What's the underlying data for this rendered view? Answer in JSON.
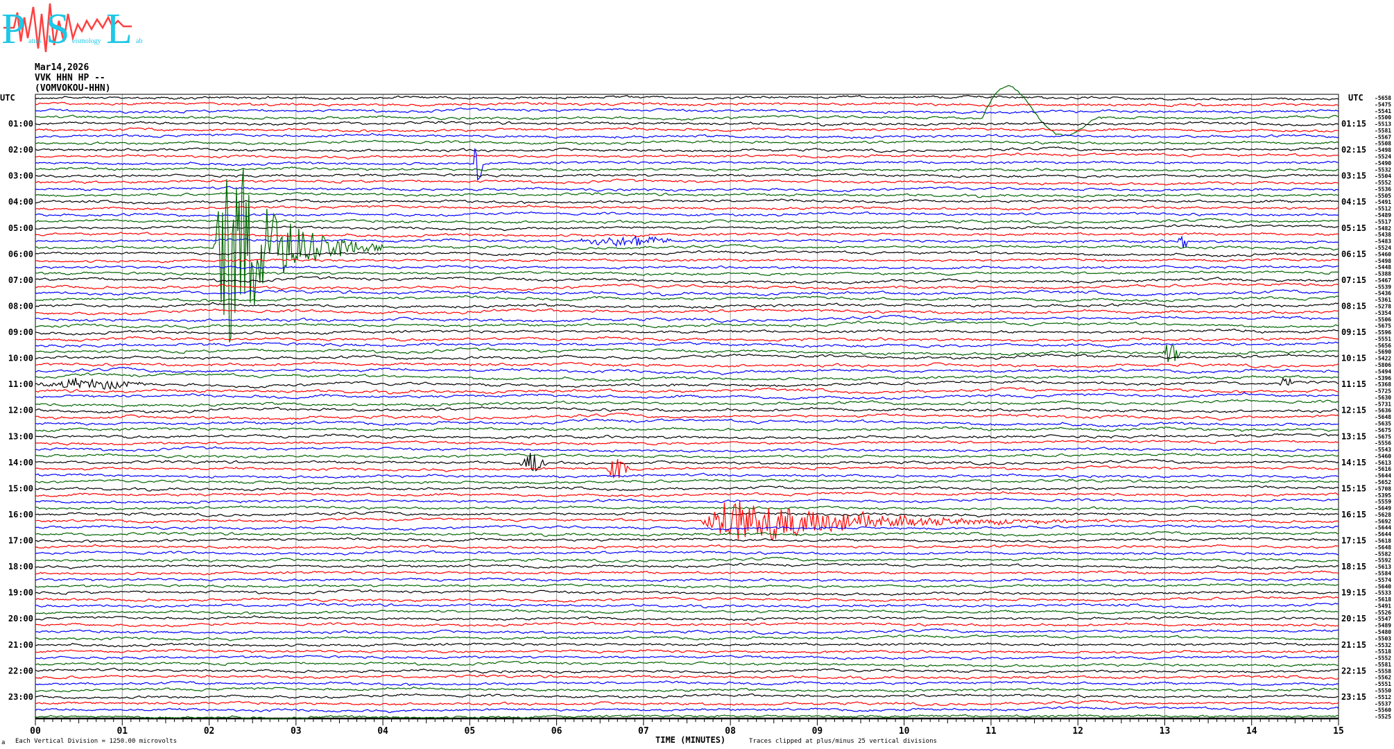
{
  "logo": {
    "letters": [
      "P",
      "S",
      "L"
    ],
    "words": [
      "atras",
      "eismology",
      "ab"
    ],
    "colors": {
      "text": "#1ec8e6",
      "wave": "#ff4040"
    }
  },
  "header": {
    "date": "Mar14,2026",
    "station": "VVK HHN HP --",
    "site": "(VOMVOKOU-HHN)"
  },
  "footer": {
    "scale_note": "Each Vertical Division = 1250.00 microvolts",
    "clip_note": "Traces clipped at plus/minus 25 vertical divisions",
    "corner_mark": "a"
  },
  "chart_data": {
    "type": "line",
    "subtype": "helicorder",
    "xlabel": "TIME (MINUTES)",
    "xlim": [
      0,
      15
    ],
    "x_ticks": [
      "00",
      "01",
      "02",
      "03",
      "04",
      "05",
      "06",
      "07",
      "08",
      "09",
      "10",
      "11",
      "12",
      "13",
      "14",
      "15"
    ],
    "grid": "vertical lines every minute",
    "trace_colors": [
      "#000000",
      "#ff0000",
      "#0000ff",
      "#006400"
    ],
    "left_axis_label": "UTC",
    "right_axis_label": "UTC",
    "left_hour_labels": [
      "01:00",
      "02:00",
      "03:00",
      "04:00",
      "05:00",
      "06:00",
      "07:00",
      "08:00",
      "09:00",
      "10:00",
      "11:00",
      "12:00",
      "13:00",
      "14:00",
      "15:00",
      "16:00",
      "17:00",
      "18:00",
      "19:00",
      "20:00",
      "21:00",
      "22:00",
      "23:00"
    ],
    "right_hour_labels": [
      "01:15",
      "02:15",
      "03:15",
      "04:15",
      "05:15",
      "06:15",
      "07:15",
      "08:15",
      "09:15",
      "10:15",
      "11:15",
      "12:15",
      "13:15",
      "14:15",
      "15:15",
      "16:15",
      "17:15",
      "18:15",
      "19:15",
      "20:15",
      "21:15",
      "22:15",
      "23:15"
    ],
    "trace_offsets": [
      -5658,
      -5475,
      -5541,
      -5500,
      -5513,
      -5581,
      -5567,
      -5508,
      -5498,
      -5524,
      -5490,
      -5532,
      -5504,
      -5552,
      -5536,
      -5505,
      -5491,
      -5512,
      -5489,
      -5517,
      -5482,
      -5438,
      -5483,
      -5524,
      -5460,
      -5498,
      -5448,
      -5388,
      -5467,
      -5539,
      -5436,
      -5361,
      -5278,
      -5354,
      -5506,
      -5675,
      -5596,
      -5551,
      -5656,
      -5690,
      -5422,
      -5806,
      -5494,
      -5396,
      -5368,
      -5725,
      -5630,
      -5731,
      -5636,
      -5648,
      -5635,
      -5675,
      -5675,
      -5556,
      -5543,
      -5460,
      -5613,
      -5616,
      -5644,
      -5652,
      -5708,
      -5395,
      -5559,
      -5649,
      -5628,
      -5692,
      -5644,
      -5644,
      -5618,
      -5648,
      -5582,
      -5592,
      -5613,
      -5584,
      -5574,
      -5640,
      -5533,
      -5618,
      -5491,
      -5526,
      -5547,
      -5489,
      -5480,
      -5503,
      -5532,
      -5518,
      -5552,
      -5581,
      -5558,
      -5562,
      -5551,
      -5550,
      -5512,
      -5537,
      -5560,
      -5525
    ],
    "events": [
      {
        "trace": 3,
        "start_min": 10.9,
        "end_min": 12.2,
        "amplitude_div": 6,
        "kind": "long-period"
      },
      {
        "trace": 10,
        "start_min": 5.05,
        "end_min": 5.15,
        "amplitude_div": 2.5,
        "kind": "spike"
      },
      {
        "trace": 23,
        "start_min": 2.05,
        "end_min": 4.0,
        "amplitude_div": 18,
        "kind": "earthquake"
      },
      {
        "trace": 22,
        "start_min": 6.2,
        "end_min": 7.4,
        "amplitude_div": 0.8,
        "kind": "burst"
      },
      {
        "trace": 22,
        "start_min": 13.15,
        "end_min": 13.25,
        "amplitude_div": 1,
        "kind": "spike"
      },
      {
        "trace": 39,
        "start_min": 12.95,
        "end_min": 13.2,
        "amplitude_div": 1.5,
        "kind": "burst"
      },
      {
        "trace": 44,
        "start_min": 0.0,
        "end_min": 1.3,
        "amplitude_div": 0.8,
        "kind": "burst"
      },
      {
        "trace": 44,
        "start_min": 14.3,
        "end_min": 14.5,
        "amplitude_div": 0.8,
        "kind": "burst"
      },
      {
        "trace": 56,
        "start_min": 5.55,
        "end_min": 5.9,
        "amplitude_div": 1.5,
        "kind": "burst"
      },
      {
        "trace": 57,
        "start_min": 6.55,
        "end_min": 6.85,
        "amplitude_div": 1.5,
        "kind": "burst"
      },
      {
        "trace": 65,
        "start_min": 7.6,
        "end_min": 12.6,
        "amplitude_div": 4,
        "kind": "earthquake"
      }
    ]
  }
}
